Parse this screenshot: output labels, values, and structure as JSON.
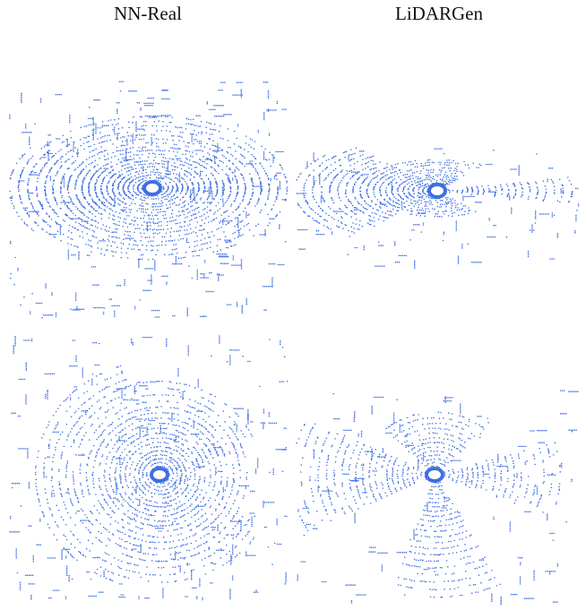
{
  "figure": {
    "columns": [
      {
        "heading": "NN-Real"
      },
      {
        "heading": "LiDARGen"
      }
    ]
  }
}
